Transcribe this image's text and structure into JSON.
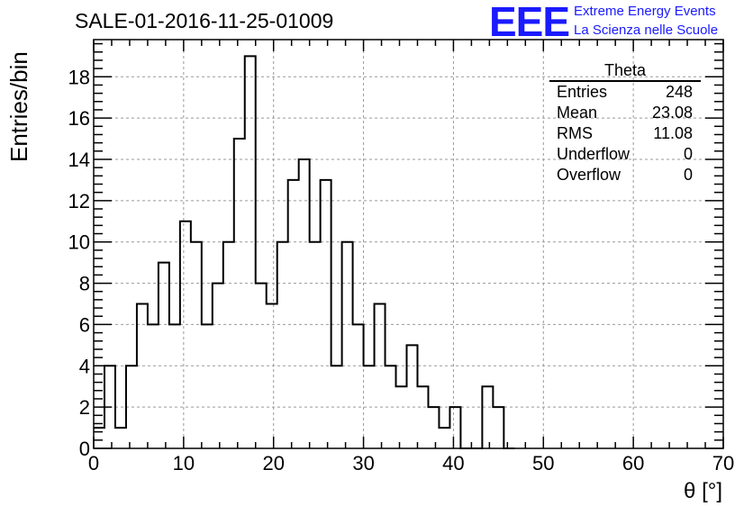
{
  "header": {
    "title": "SALE-01-2016-11-25-01009"
  },
  "logo": {
    "mark": "EEE",
    "line1": "Extreme Energy Events",
    "line2": "La Scienza nelle Scuole",
    "color": "#1a1aff"
  },
  "stats": {
    "name": "Theta",
    "rows": [
      {
        "label": "Entries",
        "value": "248"
      },
      {
        "label": "Mean",
        "value": "23.08"
      },
      {
        "label": "RMS",
        "value": "11.08"
      },
      {
        "label": "Underflow",
        "value": "0"
      },
      {
        "label": "Overflow",
        "value": "0"
      }
    ]
  },
  "chart_data": {
    "type": "histogram",
    "title": "SALE-01-2016-11-25-01009",
    "xlabel": "θ [°]",
    "ylabel": "Entries/bin",
    "xlim": [
      0,
      70
    ],
    "ylim": [
      0,
      19.8
    ],
    "x_ticks": [
      0,
      10,
      20,
      30,
      40,
      50,
      60,
      70
    ],
    "y_ticks": [
      0,
      2,
      4,
      6,
      8,
      10,
      12,
      14,
      16,
      18
    ],
    "grid": true,
    "bin_width": 1.2,
    "bins": [
      {
        "x0": 0.0,
        "x1": 1.2,
        "value": 1
      },
      {
        "x0": 1.2,
        "x1": 2.4,
        "value": 4
      },
      {
        "x0": 2.4,
        "x1": 3.6,
        "value": 1
      },
      {
        "x0": 3.6,
        "x1": 4.8,
        "value": 4
      },
      {
        "x0": 4.8,
        "x1": 6.0,
        "value": 7
      },
      {
        "x0": 6.0,
        "x1": 7.2,
        "value": 6
      },
      {
        "x0": 7.2,
        "x1": 8.4,
        "value": 9
      },
      {
        "x0": 8.4,
        "x1": 9.6,
        "value": 6
      },
      {
        "x0": 9.6,
        "x1": 10.8,
        "value": 11
      },
      {
        "x0": 10.8,
        "x1": 12.0,
        "value": 10
      },
      {
        "x0": 12.0,
        "x1": 13.2,
        "value": 6
      },
      {
        "x0": 13.2,
        "x1": 14.4,
        "value": 8
      },
      {
        "x0": 14.4,
        "x1": 15.6,
        "value": 10
      },
      {
        "x0": 15.6,
        "x1": 16.8,
        "value": 15
      },
      {
        "x0": 16.8,
        "x1": 18.0,
        "value": 19
      },
      {
        "x0": 18.0,
        "x1": 19.2,
        "value": 8
      },
      {
        "x0": 19.2,
        "x1": 20.4,
        "value": 7
      },
      {
        "x0": 20.4,
        "x1": 21.6,
        "value": 10
      },
      {
        "x0": 21.6,
        "x1": 22.8,
        "value": 13
      },
      {
        "x0": 22.8,
        "x1": 24.0,
        "value": 14
      },
      {
        "x0": 24.0,
        "x1": 25.2,
        "value": 10
      },
      {
        "x0": 25.2,
        "x1": 26.4,
        "value": 13
      },
      {
        "x0": 26.4,
        "x1": 27.6,
        "value": 4
      },
      {
        "x0": 27.6,
        "x1": 28.8,
        "value": 10
      },
      {
        "x0": 28.8,
        "x1": 30.0,
        "value": 6
      },
      {
        "x0": 30.0,
        "x1": 31.2,
        "value": 4
      },
      {
        "x0": 31.2,
        "x1": 32.4,
        "value": 7
      },
      {
        "x0": 32.4,
        "x1": 33.6,
        "value": 4
      },
      {
        "x0": 33.6,
        "x1": 34.8,
        "value": 3
      },
      {
        "x0": 34.8,
        "x1": 36.0,
        "value": 5
      },
      {
        "x0": 36.0,
        "x1": 37.2,
        "value": 3
      },
      {
        "x0": 37.2,
        "x1": 38.4,
        "value": 2
      },
      {
        "x0": 38.4,
        "x1": 39.6,
        "value": 1
      },
      {
        "x0": 39.6,
        "x1": 40.8,
        "value": 2
      },
      {
        "x0": 40.8,
        "x1": 42.0,
        "value": 0
      },
      {
        "x0": 42.0,
        "x1": 43.2,
        "value": 0
      },
      {
        "x0": 43.2,
        "x1": 44.4,
        "value": 3
      },
      {
        "x0": 44.4,
        "x1": 45.6,
        "value": 2
      },
      {
        "x0": 45.6,
        "x1": 46.8,
        "value": 0
      }
    ],
    "line_color": "#000000",
    "grid_color": "#999999"
  }
}
